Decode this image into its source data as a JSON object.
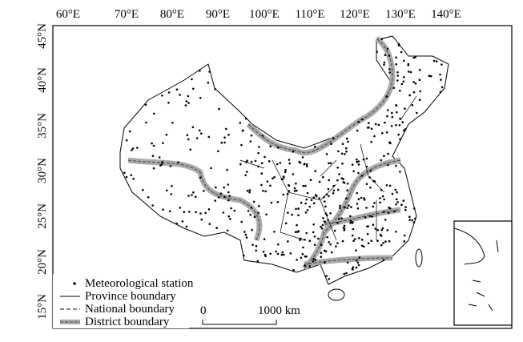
{
  "axes": {
    "top_labels": [
      "60°E",
      "70°E",
      "80°E",
      "90°E",
      "100°E",
      "110°E",
      "120°E",
      "130°E",
      "140°E"
    ],
    "left_labels": [
      "45°N",
      "40°N",
      "35°N",
      "30°N",
      "25°N",
      "20°N",
      "15°N"
    ]
  },
  "legend": {
    "items": [
      "Meteorological station",
      "Province boundary",
      "National boundary",
      "District boundary"
    ]
  },
  "scale_bar": {
    "start": "0",
    "end": "1000 km"
  }
}
